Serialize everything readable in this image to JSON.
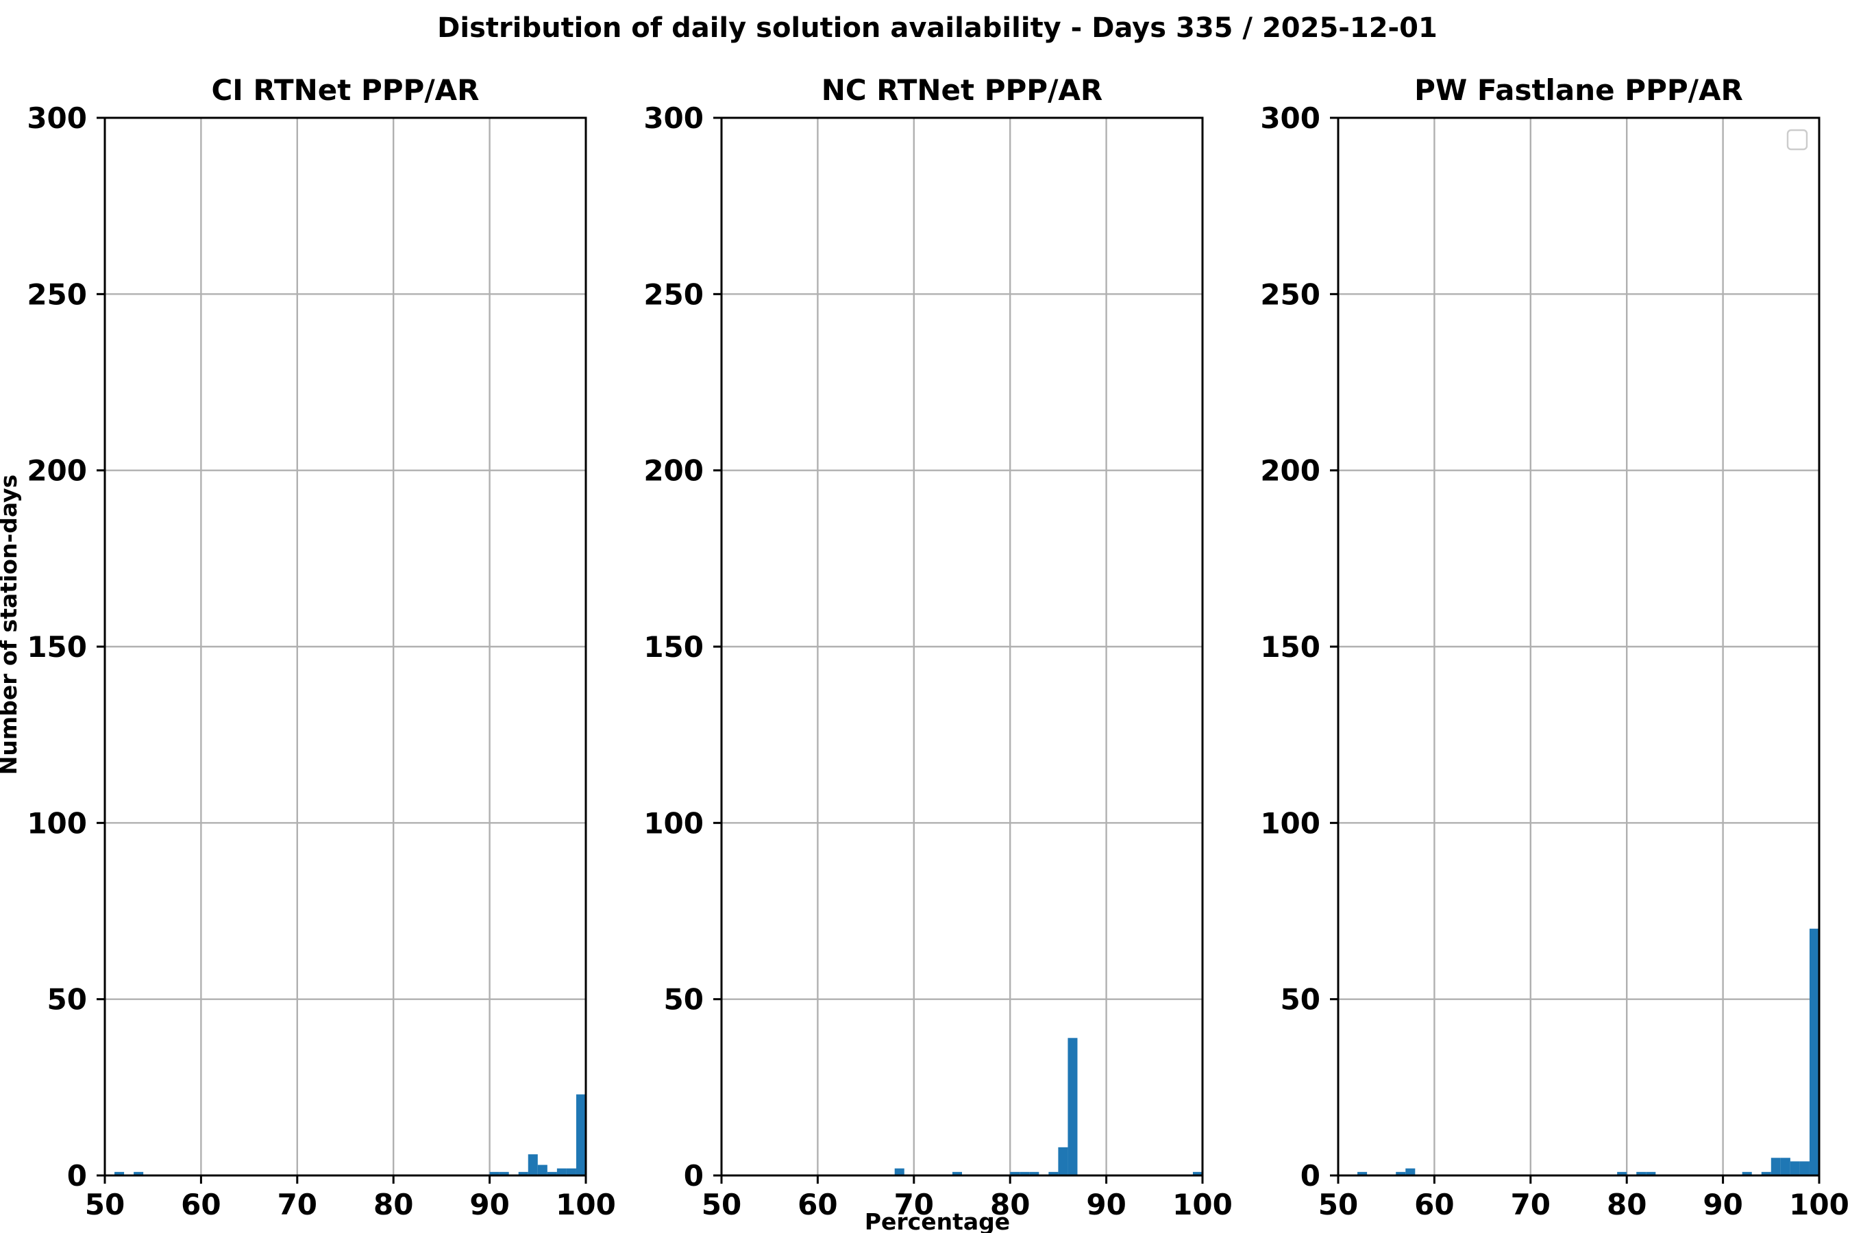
{
  "chart_data": {
    "suptitle": "Distribution of daily solution availability - Days 335  / 2025-12-01",
    "type": "bar",
    "subtype": "histogram",
    "xlabel": "Percentage",
    "ylabel": "Number of station-days",
    "xlim": [
      50,
      100
    ],
    "ylim": [
      0,
      300
    ],
    "xticks": [
      50,
      60,
      70,
      80,
      90,
      100
    ],
    "yticks": [
      0,
      50,
      100,
      150,
      200,
      250,
      300
    ],
    "bin_width": 1,
    "grid": true,
    "bar_color": "#1f77b4",
    "panels": [
      {
        "title": "CI RTNet PPP/AR",
        "legend": false,
        "bins": [
          {
            "x": 51,
            "count": 1
          },
          {
            "x": 53,
            "count": 1
          },
          {
            "x": 90,
            "count": 1
          },
          {
            "x": 91,
            "count": 1
          },
          {
            "x": 93,
            "count": 1
          },
          {
            "x": 94,
            "count": 6
          },
          {
            "x": 95,
            "count": 3
          },
          {
            "x": 96,
            "count": 1
          },
          {
            "x": 97,
            "count": 2
          },
          {
            "x": 98,
            "count": 2
          },
          {
            "x": 99,
            "count": 23
          }
        ]
      },
      {
        "title": "NC RTNet PPP/AR",
        "legend": false,
        "bins": [
          {
            "x": 68,
            "count": 2
          },
          {
            "x": 74,
            "count": 1
          },
          {
            "x": 80,
            "count": 1
          },
          {
            "x": 81,
            "count": 1
          },
          {
            "x": 82,
            "count": 1
          },
          {
            "x": 84,
            "count": 1
          },
          {
            "x": 85,
            "count": 8
          },
          {
            "x": 86,
            "count": 39
          },
          {
            "x": 99,
            "count": 1
          }
        ]
      },
      {
        "title": "PW Fastlane PPP/AR",
        "legend": true,
        "legend_position": "upper right",
        "legend_entries": [],
        "bins": [
          {
            "x": 52,
            "count": 1
          },
          {
            "x": 56,
            "count": 1
          },
          {
            "x": 57,
            "count": 2
          },
          {
            "x": 79,
            "count": 1
          },
          {
            "x": 81,
            "count": 1
          },
          {
            "x": 82,
            "count": 1
          },
          {
            "x": 92,
            "count": 1
          },
          {
            "x": 94,
            "count": 1
          },
          {
            "x": 95,
            "count": 5
          },
          {
            "x": 96,
            "count": 5
          },
          {
            "x": 97,
            "count": 4
          },
          {
            "x": 98,
            "count": 4
          },
          {
            "x": 99,
            "count": 70
          }
        ]
      }
    ]
  }
}
